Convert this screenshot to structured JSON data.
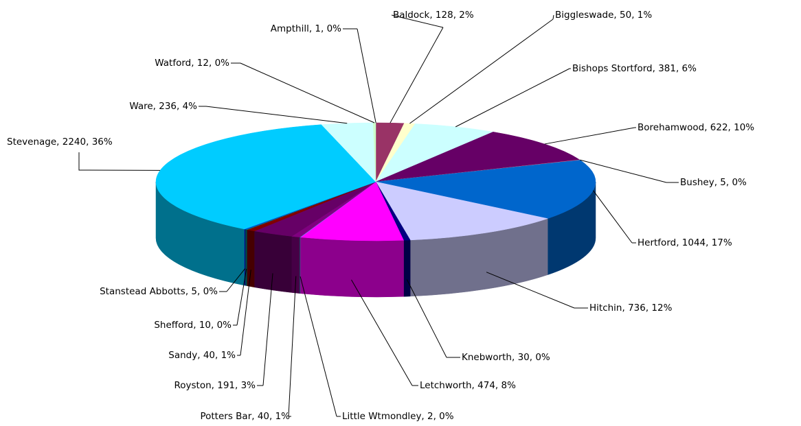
{
  "chart_data": {
    "type": "pie3d",
    "values": [
      1,
      128,
      50,
      381,
      622,
      5,
      1044,
      736,
      30,
      474,
      2,
      40,
      191,
      40,
      10,
      5,
      2240,
      236,
      12
    ],
    "value_labels": [
      "Ampthill, 1, 0%",
      "Baldock, 128, 2%",
      "Biggleswade, 50, 1%",
      "Bishops Stortford, 381, 6%",
      "Borehamwood, 622, 10%",
      "Bushey, 5, 0%",
      "Hertford, 1044, 17%",
      "Hitchin, 736, 12%",
      "Knebworth, 30, 0%",
      "Letchworth, 474, 8%",
      "Little Wtmondley, 2, 0%",
      "Potters Bar, 40, 1%",
      "Royston, 191, 3%",
      "Sandy, 40, 1%",
      "Shefford, 10, 0%",
      "Stanstead Abbotts, 5, 0%",
      "Stevenage, 2240, 36%",
      "Ware, 236, 4%",
      "Watford, 12, 0%"
    ],
    "colors": [
      "#9999ff",
      "#993366",
      "#ffffcc",
      "#ccffff",
      "#660066",
      "#ff8080",
      "#0066cc",
      "#ccccff",
      "#000080",
      "#ff00ff",
      "#00ffff",
      "#800080",
      "#660066",
      "#800000",
      "#008080",
      "#0000ff",
      "#00ccff",
      "#ccffff",
      "#ccffcc"
    ]
  }
}
